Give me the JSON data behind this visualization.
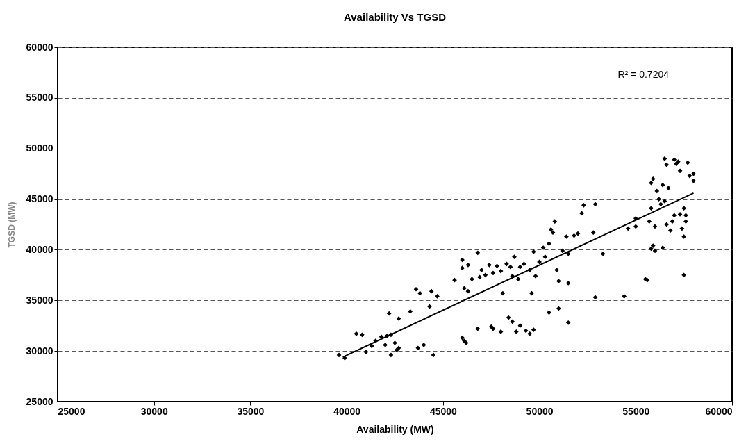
{
  "chart_data": {
    "type": "scatter",
    "title": "Availability Vs TGSD",
    "xlabel": "Availability (MW)",
    "ylabel": "TGSD (MW)",
    "xlim": [
      25000,
      60000
    ],
    "xticks": [
      25000,
      30000,
      35000,
      40000,
      45000,
      50000,
      55000,
      60000
    ],
    "ylim": [
      25000,
      60000
    ],
    "yticks": [
      25000,
      30000,
      35000,
      40000,
      45000,
      50000,
      55000,
      60000
    ],
    "grid": "y",
    "annotations": [
      "R² = 0.7204"
    ],
    "series": [
      {
        "color": "#000000",
        "marker": "diamond",
        "x": [
          39600,
          39900,
          40500,
          40800,
          41000,
          41300,
          41500,
          41800,
          42000,
          42100,
          42200,
          42300,
          42300,
          42500,
          42600,
          42700,
          42700,
          43300,
          43600,
          43800,
          43700,
          44000,
          44300,
          44400,
          44500,
          44700,
          45600,
          46000,
          46000,
          46100,
          46300,
          46300,
          46500,
          46800,
          46900,
          47000,
          47200,
          47400,
          47600,
          47800,
          48000,
          48100,
          48300,
          48500,
          48600,
          48700,
          48900,
          49000,
          49200,
          49500,
          49600,
          49700,
          49800,
          50000,
          50200,
          50300,
          50500,
          50600,
          50700,
          50800,
          50900,
          51000,
          51200,
          51400,
          51500,
          51500,
          51800,
          52000,
          52300,
          52200,
          52900,
          52800,
          53300,
          46000,
          46200,
          46100,
          46800,
          47500,
          47600,
          48000,
          48400,
          48600,
          48800,
          49000,
          49300,
          49500,
          49700,
          50500,
          51000,
          51500,
          52900,
          54400,
          54600,
          55000,
          55000,
          55500,
          55600,
          55700,
          55800,
          55800,
          55900,
          55800,
          55900,
          56000,
          56000,
          56100,
          56200,
          56400,
          56400,
          56500,
          56600,
          56500,
          56600,
          56700,
          56800,
          56900,
          57000,
          57000,
          57100,
          57200,
          57300,
          57300,
          57500,
          57500,
          57600,
          57700,
          57800,
          58000,
          58000,
          57400,
          57500,
          57600,
          56300
        ],
        "values": [
          29600,
          29300,
          31700,
          31600,
          29900,
          30500,
          31000,
          31400,
          30600,
          31500,
          33700,
          31600,
          29600,
          30800,
          30100,
          30300,
          33200,
          33900,
          36100,
          35700,
          30300,
          30600,
          34400,
          35900,
          29600,
          35400,
          37000,
          39000,
          38200,
          36200,
          38500,
          35900,
          37100,
          39700,
          37300,
          38000,
          37500,
          38500,
          37700,
          38400,
          37900,
          35700,
          38600,
          38300,
          37400,
          39300,
          37100,
          38300,
          38600,
          38000,
          35700,
          39800,
          37400,
          38800,
          40200,
          39300,
          40600,
          42000,
          41700,
          42800,
          38000,
          36900,
          39900,
          41300,
          39600,
          36700,
          41400,
          41600,
          44400,
          43600,
          44500,
          41700,
          39600,
          31300,
          30800,
          31000,
          32200,
          32400,
          32200,
          31900,
          33300,
          32900,
          31900,
          32500,
          32000,
          31700,
          32100,
          33800,
          34200,
          32800,
          35300,
          35400,
          42100,
          42300,
          43100,
          37100,
          37000,
          42800,
          44100,
          46600,
          47000,
          40100,
          40400,
          39900,
          42300,
          45800,
          45000,
          40200,
          46400,
          49000,
          48400,
          44800,
          42500,
          46100,
          41900,
          42800,
          43400,
          48900,
          48500,
          48700,
          47800,
          43500,
          44100,
          37500,
          43400,
          48600,
          47300,
          47500,
          46800,
          42100,
          41300,
          42800,
          44500
        ]
      },
      {
        "type": "line",
        "marker": "none",
        "color": "#000000",
        "x": [
          39800,
          58000
        ],
        "values": [
          29400,
          45600
        ]
      }
    ]
  }
}
